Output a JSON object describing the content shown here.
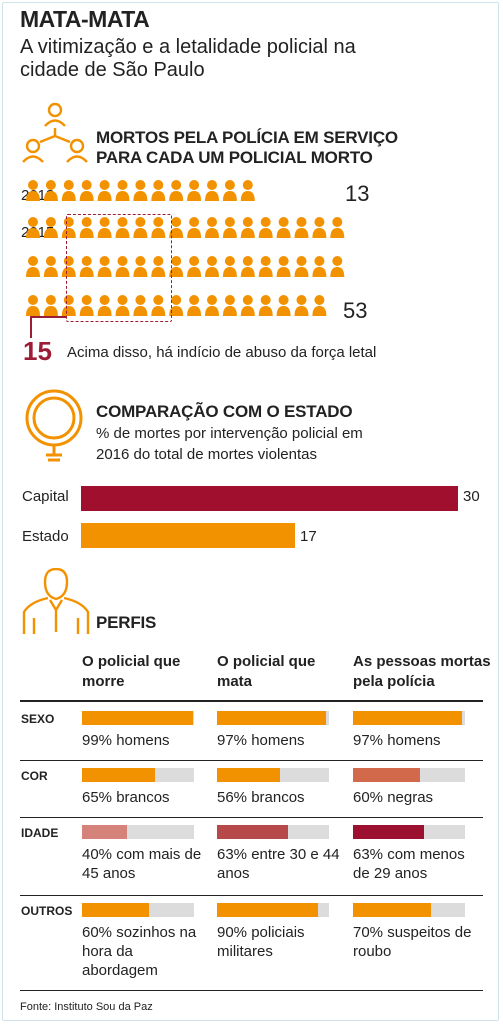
{
  "header": {
    "title": "MATA-MATA",
    "subtitle": "A vitimização e a letalidade policial na cidade de São Paulo"
  },
  "section1": {
    "icon": "people-network-icon",
    "title": "MORTOS PELA POLÍCIA EM SERVIÇO PARA CADA UM POLICIAL MORTO",
    "threshold_value": "15",
    "threshold_text": "Acima disso, há indício de abuso da força letal"
  },
  "section2": {
    "icon": "magnifier-icon",
    "title": "COMPARAÇÃO COM O ESTADO",
    "subtitle": "% de mortes por intervenção policial em 2016 do total de mortes violentas"
  },
  "section3": {
    "icon": "person-silhouette-icon",
    "title": "PERFIS",
    "columns": [
      "O policial que morre",
      "O policial que mata",
      "As pessoas mortas pela polícia"
    ],
    "rows": [
      {
        "label": "SEXO",
        "cells": [
          {
            "caption": "99% homens",
            "fraction": 0.99,
            "color": "#f39200"
          },
          {
            "caption": "97% homens",
            "fraction": 0.97,
            "color": "#f39200"
          },
          {
            "caption": "97% homens",
            "fraction": 0.97,
            "color": "#f39200"
          }
        ]
      },
      {
        "label": "COR",
        "cells": [
          {
            "caption": "65% brancos",
            "fraction": 0.65,
            "color": "#f39200"
          },
          {
            "caption": "56% brancos",
            "fraction": 0.56,
            "color": "#f39200"
          },
          {
            "caption": "60% negras",
            "fraction": 0.6,
            "color": "#d2694a"
          }
        ]
      },
      {
        "label": "IDADE",
        "cells": [
          {
            "caption": "40% com mais de 45 anos",
            "fraction": 0.4,
            "color": "#d4827a"
          },
          {
            "caption": "63% entre 30 e 44 anos",
            "fraction": 0.63,
            "color": "#b8494a"
          },
          {
            "caption": "63% com menos de 29 anos",
            "fraction": 0.63,
            "color": "#9c1030"
          }
        ]
      },
      {
        "label": "OUTROS",
        "cells": [
          {
            "caption": "60% sozinhos na hora da abordagem",
            "fraction": 0.6,
            "color": "#f39200"
          },
          {
            "caption": "90% policiais militares",
            "fraction": 0.9,
            "color": "#f39200"
          },
          {
            "caption": "70% suspeitos de roubo",
            "fraction": 0.7,
            "color": "#f39200"
          }
        ]
      }
    ]
  },
  "source": "Fonte: Instituto Sou da Paz",
  "colors": {
    "orange": "#f39200",
    "darkred": "#9c1d36",
    "bar_red": "#a0102e",
    "gray": "#dcdcdc"
  },
  "chart_data": [
    {
      "type": "pictogram",
      "title": "MORTOS PELA POLÍCIA EM SERVIÇO PARA CADA UM POLICIAL MORTO",
      "categories": [
        "2013",
        "2015"
      ],
      "values": [
        13,
        53
      ],
      "value_labels": [
        "13",
        "53"
      ],
      "threshold": 15
    },
    {
      "type": "bar",
      "title": "COMPARAÇÃO COM O ESTADO",
      "categories": [
        "Capital",
        "Estado"
      ],
      "values": [
        30,
        17
      ],
      "colors": [
        "#a0102e",
        "#f39200"
      ]
    }
  ]
}
